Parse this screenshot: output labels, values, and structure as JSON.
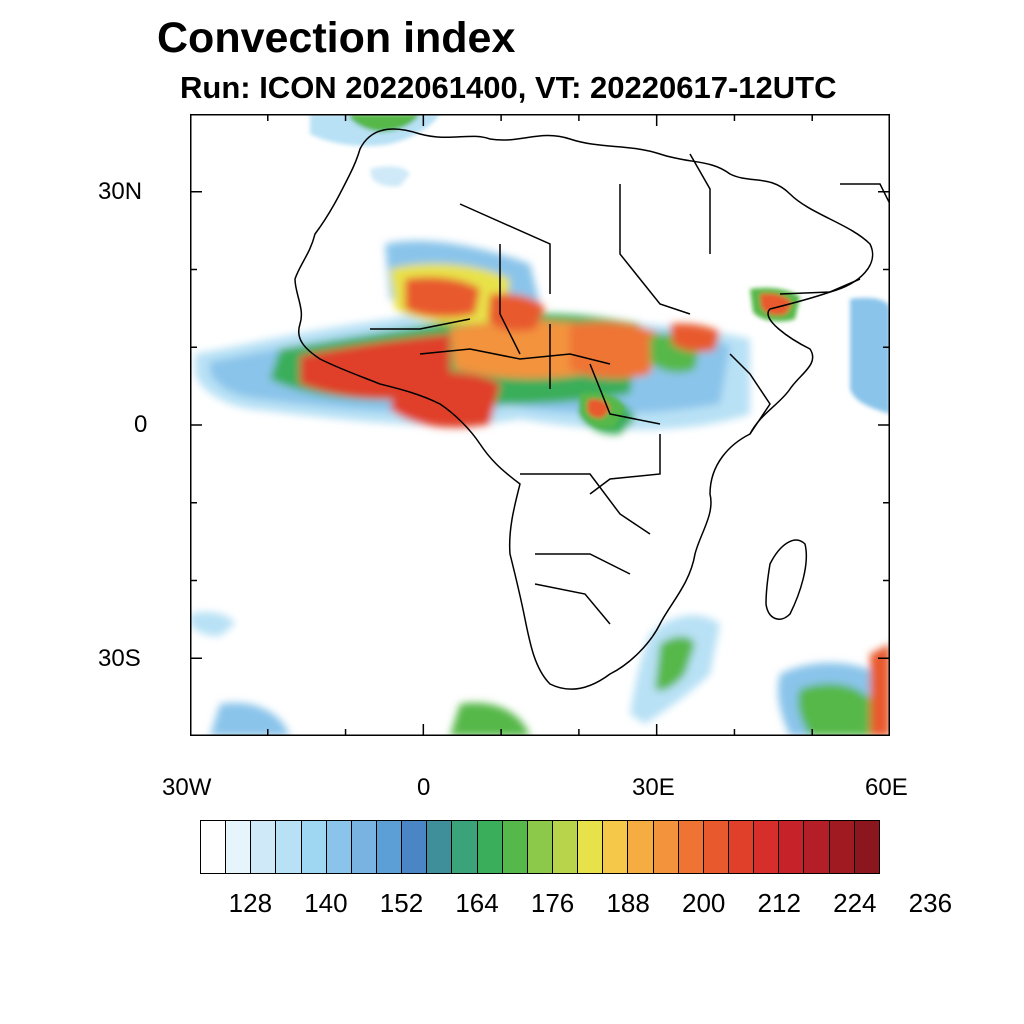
{
  "chart_data": {
    "type": "heatmap",
    "title": "Convection index",
    "subtitle": "Run: ICON 2022061400,  VT: 20220617-12UTC",
    "x_axis": {
      "range": [
        -30,
        60
      ],
      "ticks": [
        -30,
        0,
        30,
        60
      ],
      "tick_labels": [
        "30W",
        "0",
        "30E",
        "60E"
      ]
    },
    "y_axis": {
      "range": [
        -40,
        40
      ],
      "ticks": [
        30,
        0,
        -30
      ],
      "tick_labels": [
        "30N",
        "0",
        "30S"
      ]
    },
    "colorbar": {
      "levels": [
        128,
        140,
        152,
        164,
        176,
        188,
        200,
        212,
        224,
        236
      ],
      "colors": [
        "#ffffff",
        "#e6f4fc",
        "#cfe9f8",
        "#b8e1f5",
        "#9fd6f2",
        "#8ac4ea",
        "#78b3e2",
        "#5c9fd6",
        "#4a86c6",
        "#3f8f9a",
        "#3aa37a",
        "#3aae5a",
        "#56b84a",
        "#8cc84a",
        "#b8d44a",
        "#e8e24a",
        "#f5c84a",
        "#f5ad42",
        "#f3933c",
        "#ef7434",
        "#e85a2e",
        "#e0402a",
        "#d62e2a",
        "#c6222a",
        "#b41e26",
        "#a01a22",
        "#8c161e"
      ]
    },
    "region": "Africa"
  }
}
